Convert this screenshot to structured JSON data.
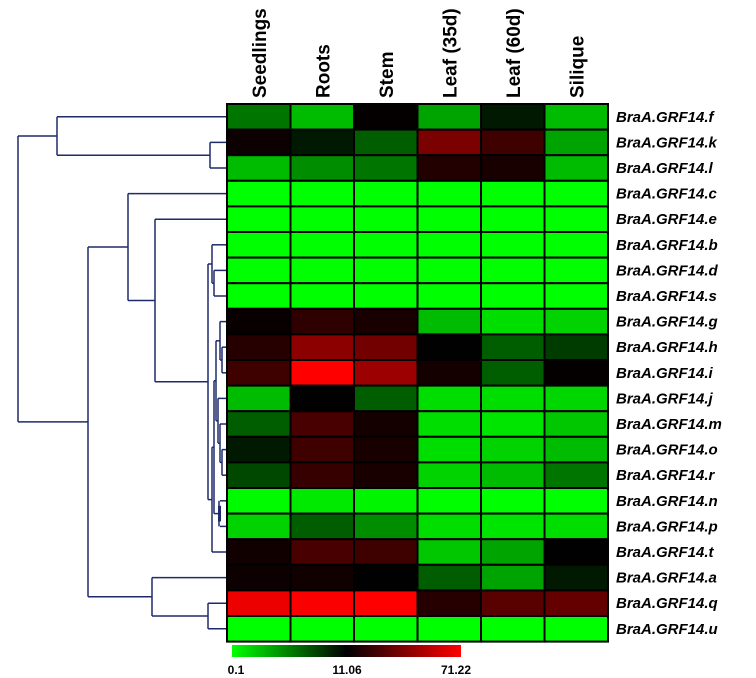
{
  "chart_data": {
    "type": "heatmap",
    "columns": [
      "Seedlings",
      "Roots",
      "Stem",
      "Leaf (35d)",
      "Leaf (60d)",
      "Silique"
    ],
    "rows": [
      "BraA.GRF14.f",
      "BraA.GRF14.k",
      "BraA.GRF14.l",
      "BraA.GRF14.c",
      "BraA.GRF14.e",
      "BraA.GRF14.b",
      "BraA.GRF14.d",
      "BraA.GRF14.s",
      "BraA.GRF14.g",
      "BraA.GRF14.h",
      "BraA.GRF14.i",
      "BraA.GRF14.j",
      "BraA.GRF14.m",
      "BraA.GRF14.o",
      "BraA.GRF14.r",
      "BraA.GRF14.n",
      "BraA.GRF14.p",
      "BraA.GRF14.t",
      "BraA.GRF14.a",
      "BraA.GRF14.q",
      "BraA.GRF14.u"
    ],
    "values": [
      [
        6,
        3,
        12,
        4,
        10,
        3
      ],
      [
        14,
        10,
        7,
        40,
        26,
        4
      ],
      [
        3,
        5,
        6,
        19,
        17,
        3
      ],
      [
        0.1,
        0.1,
        0.1,
        0.1,
        0.1,
        0.1
      ],
      [
        0.1,
        0.1,
        0.1,
        0.1,
        0.1,
        0.1
      ],
      [
        0.1,
        0.1,
        0.1,
        0.1,
        0.1,
        0.1
      ],
      [
        0.1,
        0.1,
        0.1,
        0.1,
        0.1,
        0.1
      ],
      [
        0.1,
        0.1,
        0.1,
        0.1,
        0.1,
        0.1
      ],
      [
        13,
        22,
        17,
        3,
        1.5,
        2
      ],
      [
        20,
        44,
        38,
        11,
        7,
        8.5
      ],
      [
        26,
        71.22,
        48,
        16,
        7,
        12
      ],
      [
        3,
        11,
        7,
        1.5,
        1.5,
        1.8
      ],
      [
        7,
        28,
        16,
        1.5,
        1.2,
        2.5
      ],
      [
        10,
        26,
        17,
        1.5,
        2,
        3
      ],
      [
        8,
        24,
        17,
        2,
        3,
        6
      ],
      [
        0.3,
        1,
        0.5,
        0.2,
        0.1,
        0.1
      ],
      [
        2,
        7,
        5,
        1.5,
        1.2,
        1.5
      ],
      [
        15,
        28,
        26,
        2.5,
        4,
        11
      ],
      [
        14,
        15,
        11,
        7,
        4,
        10
      ],
      [
        67,
        70,
        71,
        20,
        32,
        35
      ],
      [
        0.1,
        0.1,
        0.1,
        0.1,
        0.1,
        0.1
      ]
    ],
    "scale": {
      "min": 0.1,
      "mid": 11.06,
      "max": 71.22,
      "min_label": "0.1",
      "mid_label": "11.06",
      "max_label": "71.22",
      "low_color": "#00ff00",
      "mid_color": "#000000",
      "high_color": "#ff0000"
    },
    "dendrogram_color": "#1f2a6b"
  }
}
